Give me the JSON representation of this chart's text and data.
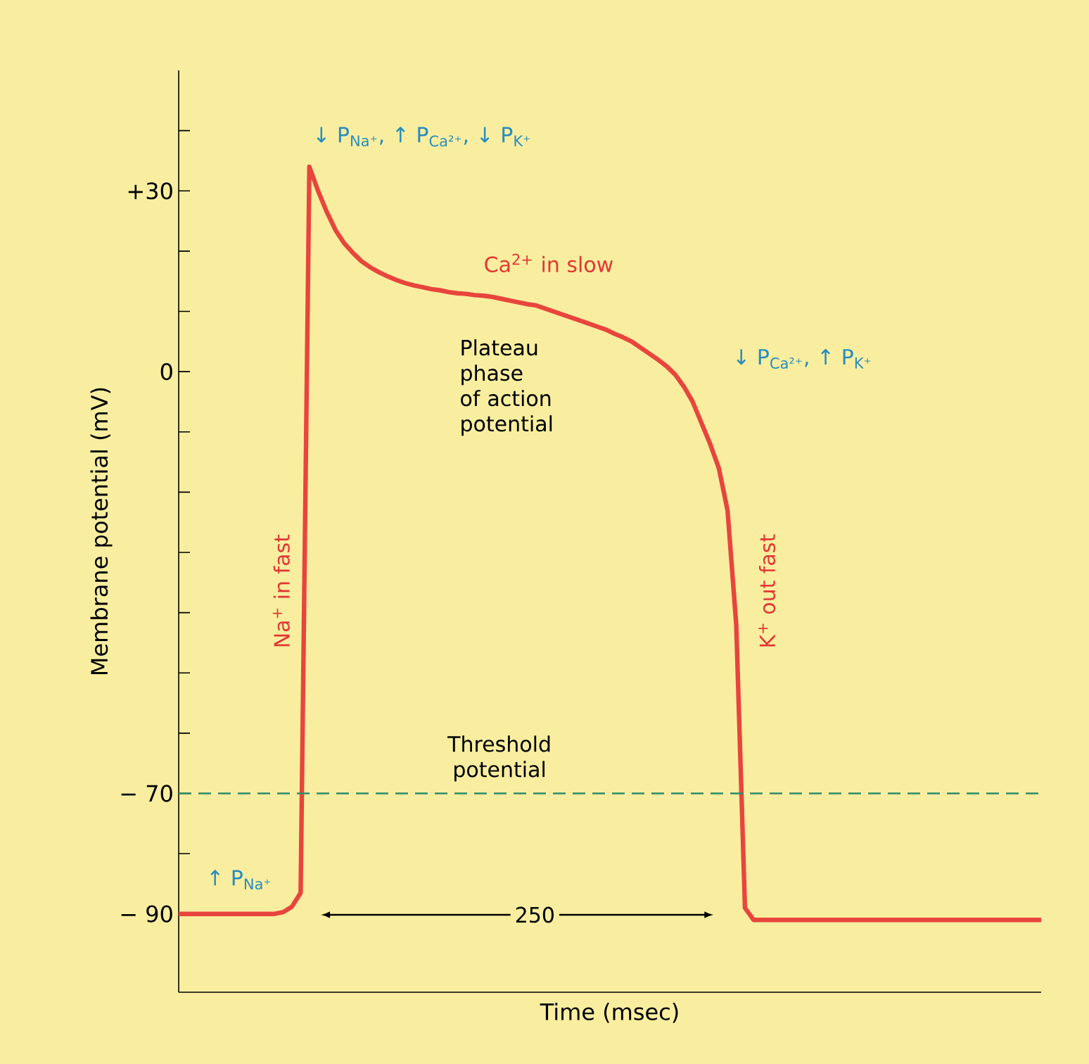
{
  "chart_data": {
    "type": "line",
    "xlabel": "Time (msec)",
    "ylabel": "Membrane potential (mV)",
    "categories": [
      null,
      null,
      null,
      null,
      null,
      null,
      null,
      null,
      null,
      null,
      null,
      null,
      null,
      null,
      null,
      null,
      null,
      null,
      null,
      null,
      null,
      null,
      null,
      null,
      null,
      null,
      null,
      null,
      null,
      null,
      null,
      null,
      null,
      null,
      null,
      null,
      null,
      null,
      null,
      null,
      null,
      null,
      null,
      null,
      null,
      null,
      null,
      null,
      null,
      null,
      null,
      null,
      null,
      null,
      null,
      null,
      null,
      null,
      null,
      null,
      null,
      null,
      null,
      null,
      null,
      null,
      null,
      null,
      null,
      null,
      null,
      null,
      null,
      null,
      null,
      null,
      null,
      null,
      null,
      null,
      null,
      null,
      null,
      null,
      null,
      null,
      null,
      null,
      null,
      null,
      null,
      null,
      null,
      null,
      null,
      null,
      null,
      null,
      null,
      null
    ],
    "ylim": [
      -103,
      50
    ],
    "yticks": [
      {
        "value": 40,
        "label": null
      },
      {
        "value": 30,
        "label": "+30"
      },
      {
        "value": 20,
        "label": null
      },
      {
        "value": 10,
        "label": null
      },
      {
        "value": 0,
        "label": "0"
      },
      {
        "value": -10,
        "label": null
      },
      {
        "value": -20,
        "label": null
      },
      {
        "value": -30,
        "label": null
      },
      {
        "value": -40,
        "label": null
      },
      {
        "value": -50,
        "label": null
      },
      {
        "value": -60,
        "label": null
      },
      {
        "value": -70,
        "label": "− 70"
      },
      {
        "value": -80,
        "label": null
      },
      {
        "value": -90,
        "label": "− 90"
      }
    ],
    "tick_labels": "y",
    "marker": "none",
    "line_style": "solid",
    "series": [
      {
        "color": "#e8453c",
        "values": [
          -90,
          -90,
          -90,
          -90,
          -90,
          -90,
          -90,
          -90,
          -90,
          -90,
          -90,
          -90,
          -89.7,
          -88.8,
          -86.5,
          34,
          30,
          26.5,
          23.5,
          21.3,
          19.7,
          18.3,
          17.3,
          16.5,
          15.8,
          15.2,
          14.7,
          14.3,
          14,
          13.7,
          13.5,
          13.2,
          13,
          12.9,
          12.7,
          12.6,
          12.4,
          12.1,
          11.8,
          11.5,
          11.2,
          11,
          10.5,
          10,
          9.5,
          9,
          8.5,
          8,
          7.5,
          7,
          6.3,
          5.7,
          5,
          4,
          3,
          2,
          0.9,
          -0.5,
          -2.5,
          -5,
          -8.5,
          -12,
          -16,
          -23,
          -42,
          -89,
          -91,
          -91,
          -91,
          -91,
          -91,
          -91,
          -91,
          -91,
          -91,
          -91,
          -91,
          -91,
          -91,
          -91,
          -91,
          -91,
          -91,
          -91,
          -91,
          -91,
          -91,
          -91,
          -91,
          -91,
          -91,
          -91,
          -91,
          -91,
          -91,
          -91,
          -91,
          -91,
          -91,
          -91
        ]
      }
    ],
    "ref_lines": [
      {
        "axis": "y",
        "value": -70,
        "label": "Threshold potential",
        "color": "#2e8b6a",
        "line_style": "dashed"
      }
    ],
    "annotations": [
      "↓ P$_{Na⁺}$, ↑ P$_{Ca²⁺}$, ↓ P$_{K⁺}$",
      "Ca$^{2+}$ in slow",
      "Plateau phase of action potential",
      "↓ P$_{Ca²⁺}$, ↑ P$_{K⁺}$",
      "Na$^{+}$ in fast",
      "K$^{+}$ out fast",
      "↑ P$_{Na⁺}$",
      "250"
    ]
  }
}
